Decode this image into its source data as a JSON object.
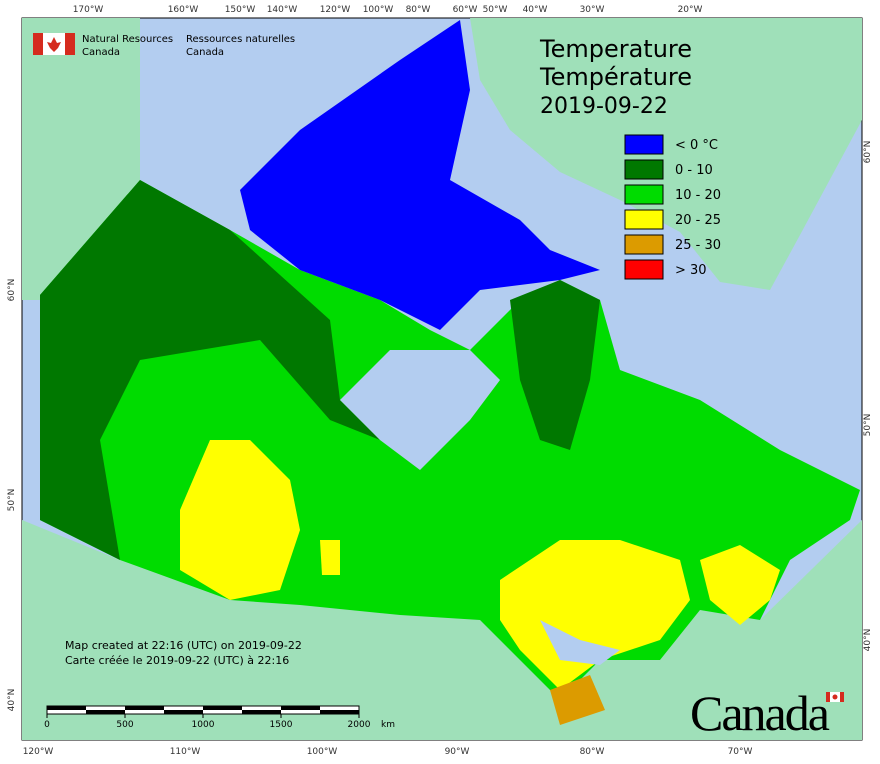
{
  "agency": {
    "en_line1": "Natural Resources",
    "en_line2": "Canada",
    "fr_line1": "Ressources naturelles",
    "fr_line2": "Canada"
  },
  "title": {
    "en": "Temperature",
    "fr": "Température",
    "date": "2019-09-22"
  },
  "legend": [
    {
      "label": "< 0 °C",
      "color": "#0000ff"
    },
    {
      "label": "0 - 10",
      "color": "#007800"
    },
    {
      "label": "10 - 20",
      "color": "#00dc00"
    },
    {
      "label": "20 - 25",
      "color": "#ffff00"
    },
    {
      "label": "25 - 30",
      "color": "#dc9b00"
    },
    {
      "label": "> 30",
      "color": "#ff0000"
    }
  ],
  "notes": [
    "Map created at 22:16 (UTC) on 2019-09-22",
    "Carte créée le 2019-09-22 (UTC) à 22:16"
  ],
  "scale_bar": {
    "ticks": [
      0,
      500,
      1000,
      1500,
      2000
    ],
    "unit": "km"
  },
  "wordmark": "Canada",
  "graticule": {
    "top": [
      "170°W",
      "160°W",
      "150°W",
      "140°W",
      "120°W",
      "100°W",
      "80°W",
      "60°W",
      "50°W",
      "40°W",
      "30°W",
      "20°W"
    ],
    "bottom": [
      "120°W",
      "110°W",
      "100°W",
      "90°W",
      "80°W",
      "70°W"
    ],
    "left": [
      "60°N",
      "50°N",
      "40°N"
    ],
    "right": [
      "60°N",
      "50°N",
      "40°N"
    ]
  }
}
